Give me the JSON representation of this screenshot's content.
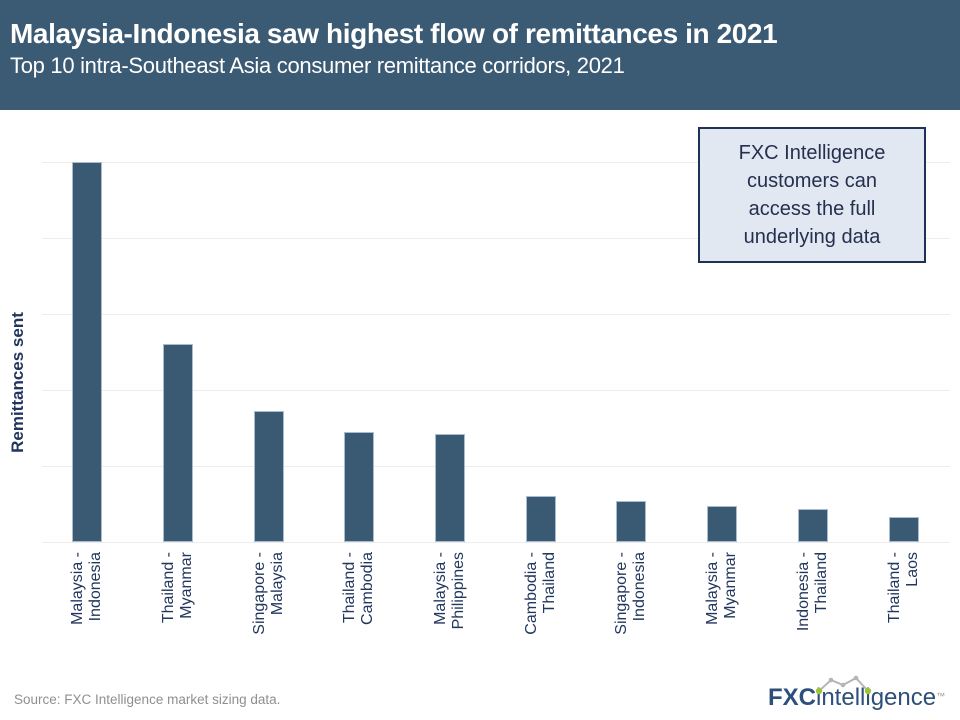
{
  "chart_data": {
    "type": "bar",
    "title": "Malaysia-Indonesia saw highest flow of remittances in 2021",
    "subtitle": "Top 10 intra-Southeast Asia consumer remittance corridors, 2021",
    "ylabel": "Remittances sent",
    "xlabel": "",
    "categories": [
      "Malaysia - Indonesia",
      "Thailand - Myanmar",
      "Singapore - Malaysia",
      "Thailand - Cambodia",
      "Malaysia - Philippines",
      "Cambodia - Thailand",
      "Singapore - Indonesia",
      "Malaysia - Myanmar",
      "Indonesia - Thailand",
      "Thailand - Laos"
    ],
    "category_label_lines": [
      [
        "Malaysia -",
        "Indonesia"
      ],
      [
        "Thailand -",
        "Myanmar"
      ],
      [
        "Singapore -",
        "Malaysia"
      ],
      [
        "Thailand -",
        "Cambodia"
      ],
      [
        "Malaysia -",
        "Philippines"
      ],
      [
        "Cambodia -",
        "Thailand"
      ],
      [
        "Singapore -",
        "Indonesia"
      ],
      [
        "Malaysia -",
        "Myanmar"
      ],
      [
        "Indonesia -",
        "Thailand"
      ],
      [
        "Thailand -",
        "Laos"
      ]
    ],
    "values": [
      100,
      52.1,
      34.5,
      28.9,
      28.4,
      12.1,
      10.8,
      9.5,
      8.7,
      6.6
    ],
    "values_unit": "percent_of_tallest_bar (no numeric y-axis tick labels shown in chart)",
    "ylim": [
      0,
      100
    ],
    "y_axis": {
      "tick_labels_visible": false,
      "gridline_count": 5
    },
    "grid": "horizontal",
    "legend": "none"
  },
  "callout": {
    "text": "FXC Intelligence customers can access the full underlying data",
    "lines": [
      "FXC Intelligence",
      "customers can",
      "access the full",
      "underlying data"
    ]
  },
  "footer": {
    "source": "Source: FXC Intelligence market sizing data.",
    "logo": {
      "text": "FXCintelligence",
      "bold_part": "FXC",
      "rest_part": "intelligence",
      "trademark": "™"
    }
  },
  "icons": {
    "logo_sparkline_icon": "zigzag line-chart doodle with dots above the logo letters"
  },
  "colors": {
    "header_bg": "#3b5a74",
    "bar": "#3a5a74",
    "bar_border": "#aabdd0",
    "grid": "#ececec",
    "callout_bg": "#e1e8f2",
    "callout_border": "#1d3254",
    "text_navy": "#22375d",
    "source_gray": "#8f8f8f",
    "logo_navy": "#2d4f79",
    "logo_green": "#9dc43b",
    "logo_gray": "#b5b5b5"
  }
}
